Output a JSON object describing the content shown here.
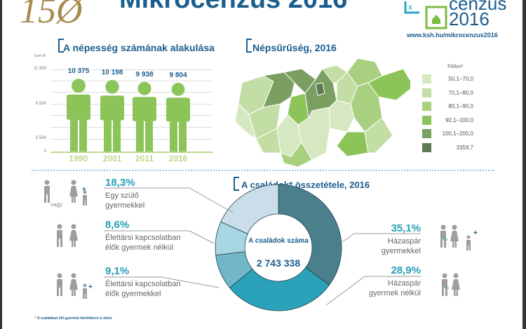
{
  "header": {
    "title": "Mikrocenzus 2016",
    "logo_left_text": "150",
    "logo_right_line1": "cenzus",
    "logo_right_line2": "2016",
    "url": "www.ksh.hu/mikrocenzus2016"
  },
  "population": {
    "title": "A népesség számának alakulása",
    "unit": "Ezer fő",
    "ticks": [
      "11 500",
      "8 500",
      "5 500",
      "0"
    ]
  },
  "density": {
    "title": "Népsűrűség, 2016",
    "unit": "Fő/km²",
    "legend": [
      {
        "label": "50,1–70,0",
        "color": "#d6e8c2"
      },
      {
        "label": "70,1–80,0",
        "color": "#c3dea5"
      },
      {
        "label": "80,1–90,0",
        "color": "#a9d07f"
      },
      {
        "label": "90,1–100,0",
        "color": "#8cc45a"
      },
      {
        "label": "100,1–200,0",
        "color": "#7a9f60"
      },
      {
        "label": "3359,7",
        "color": "#5e7a55"
      }
    ]
  },
  "families": {
    "title": "A családok* összetétele, 2016",
    "center_label": "A családok száma",
    "center_value": "2 743 338",
    "vagy": "vagy",
    "footnote": "* A családban élő gyermek felnőttkorú is lehet."
  },
  "chart_data": [
    {
      "type": "bar",
      "title": "A népesség számának alakulása",
      "ylabel": "Ezer fő",
      "categories": [
        "1990",
        "2001",
        "2011",
        "2016"
      ],
      "values": [
        10375,
        10198,
        9938,
        9804
      ],
      "value_labels": [
        "10 375",
        "10 198",
        "9 938",
        "9 804"
      ],
      "ylim": [
        0,
        11500
      ],
      "grid": true
    },
    {
      "type": "pie",
      "title": "A családok* összetétele, 2016",
      "donut": true,
      "slices": [
        {
          "label": "Házaspár gyermekkel",
          "value": 35.1,
          "pct": "35,1%",
          "color": "#4a808c"
        },
        {
          "label": "Házaspár gyermek nélkül",
          "value": 28.9,
          "pct": "28,9%",
          "color": "#2aa2ba"
        },
        {
          "label": "Élettársi kapcsolatban élők gyermekkel",
          "value": 9.1,
          "pct": "9,1%",
          "color": "#72b7c9"
        },
        {
          "label": "Élettársi kapcsolatban élők gyermek nélkül",
          "value": 8.6,
          "pct": "8,6%",
          "color": "#a9d6e3"
        },
        {
          "label": "Egy szülő gyermekkel",
          "value": 18.3,
          "pct": "18,3%",
          "color": "#c9dee9"
        }
      ]
    }
  ]
}
